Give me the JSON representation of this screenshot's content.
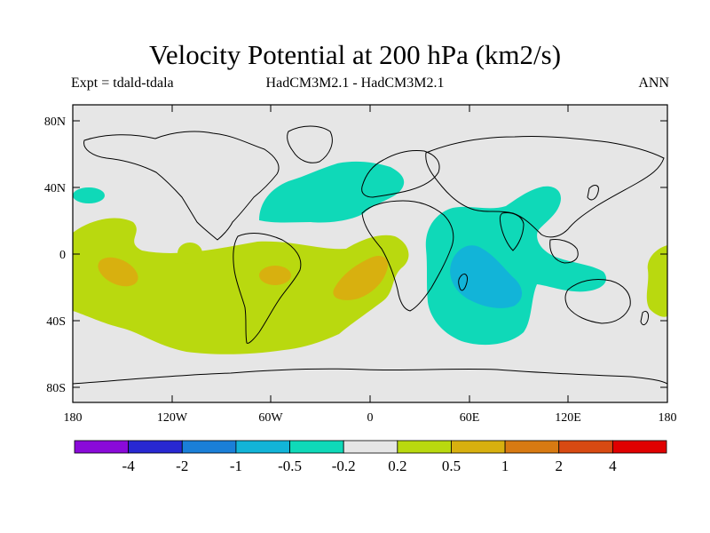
{
  "title": "Velocity Potential at 200 hPa (km2/s)",
  "subtitle": {
    "left": "Expt = tdald-tdala",
    "center": "HadCM3M2.1 - HadCM3M2.1",
    "right": "ANN"
  },
  "map": {
    "lat_ticks": [
      "80N",
      "40N",
      "0",
      "40S",
      "80S"
    ],
    "lon_ticks": [
      "180",
      "120W",
      "60W",
      "0",
      "60E",
      "120E",
      "180"
    ]
  },
  "colorbar": {
    "labels": [
      "-4",
      "-2",
      "-1",
      "-0.5",
      "-0.2",
      "0.2",
      "0.5",
      "1",
      "2",
      "4"
    ],
    "colors": [
      "#8a0ad9",
      "#2828d2",
      "#1a7fd8",
      "#12b4d8",
      "#0fd9b8",
      "#e6e6e6",
      "#b9d90f",
      "#d8b00f",
      "#d87a12",
      "#d84a12",
      "#e00000"
    ]
  },
  "colors": {
    "background": "#e6e6e6",
    "neg_02": "#0fd9b8",
    "neg_05": "#12b4d8",
    "pos_02": "#b9d90f",
    "pos_05": "#d8b00f"
  }
}
